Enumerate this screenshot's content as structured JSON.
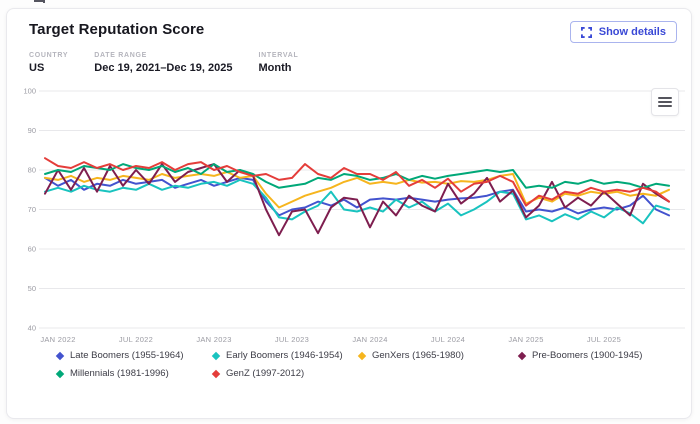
{
  "header": {
    "title": "Target Reputation Score",
    "show_details_label": "Show details"
  },
  "filters": {
    "country_label": "COUNTRY",
    "country_value": "US",
    "date_range_label": "DATE RANGE",
    "date_range_value": "Dec 19, 2021–Dec 19, 2025",
    "interval_label": "INTERVAL",
    "interval_value": "Month"
  },
  "icons": {
    "show_details": "expand-icon",
    "chart_menu": "hamburger-menu-icon"
  },
  "colors": {
    "accent": "#3a49d6",
    "grid": "#e8e8eb",
    "axis_label": "#9b9ba3"
  },
  "chart_data": {
    "type": "line",
    "title": "",
    "xlabel": "",
    "ylabel": "",
    "grid": true,
    "legend_position": "bottom",
    "ylim": [
      40,
      100
    ],
    "y_ticks": [
      100,
      90,
      80,
      70,
      60,
      50,
      40
    ],
    "x_tick_labels": [
      "JAN 2022",
      "JUL 2022",
      "JAN 2023",
      "JUL 2023",
      "JAN 2024",
      "JUL 2024",
      "JAN 2025",
      "JUL 2025"
    ],
    "x_tick_indexes": [
      1,
      7,
      13,
      19,
      25,
      31,
      37,
      43
    ],
    "x_months": [
      "Dec 2021",
      "Jan 2022",
      "Feb 2022",
      "Mar 2022",
      "Apr 2022",
      "May 2022",
      "Jun 2022",
      "Jul 2022",
      "Aug 2022",
      "Sep 2022",
      "Oct 2022",
      "Nov 2022",
      "Dec 2022",
      "Jan 2023",
      "Feb 2023",
      "Mar 2023",
      "Apr 2023",
      "May 2023",
      "Jun 2023",
      "Jul 2023",
      "Aug 2023",
      "Sep 2023",
      "Oct 2023",
      "Nov 2023",
      "Dec 2023",
      "Jan 2024",
      "Feb 2024",
      "Mar 2024",
      "Apr 2024",
      "May 2024",
      "Jun 2024",
      "Jul 2024",
      "Aug 2024",
      "Sep 2024",
      "Oct 2024",
      "Nov 2024",
      "Dec 2024",
      "Jan 2025",
      "Feb 2025",
      "Mar 2025",
      "Apr 2025",
      "May 2025",
      "Jun 2025",
      "Jul 2025",
      "Aug 2025",
      "Sep 2025",
      "Oct 2025",
      "Nov 2025",
      "Dec 2025"
    ],
    "series": [
      {
        "name": "Late Boomers (1955-1964)",
        "color": "#4353ce",
        "values": [
          78,
          76,
          77.5,
          75,
          76.5,
          76,
          77.5,
          76.5,
          77,
          77.5,
          75.5,
          76.5,
          77.5,
          76,
          77,
          78,
          77.5,
          72,
          68.5,
          70,
          70.5,
          72,
          71,
          72.5,
          70.5,
          72.5,
          72.8,
          72.5,
          73,
          72.5,
          72,
          72.5,
          72.8,
          73,
          73.5,
          74.5,
          75,
          69.5,
          70,
          69.5,
          70.5,
          69,
          70,
          70.5,
          70,
          71,
          73.5,
          70,
          68.5
        ]
      },
      {
        "name": "Early Boomers (1946-1954)",
        "color": "#19c3bf",
        "values": [
          74.5,
          75.5,
          74.5,
          76,
          75,
          74.5,
          75.5,
          75,
          76.5,
          75,
          76,
          75.5,
          76.5,
          77,
          76,
          77.5,
          76.5,
          73,
          68,
          67.5,
          69.5,
          71,
          74.5,
          70,
          69.5,
          70.5,
          69.5,
          72.5,
          70.5,
          72,
          69.5,
          71.5,
          68.5,
          70,
          72,
          74.5,
          74,
          67.5,
          68.5,
          67,
          68.8,
          67.5,
          69.5,
          68,
          70.5,
          69,
          66.5,
          71,
          70
        ]
      },
      {
        "name": "GenXers (1965-1980)",
        "color": "#f6b51e",
        "values": [
          78,
          77.5,
          78.5,
          77,
          78,
          77.5,
          78.5,
          78,
          77.5,
          79,
          78,
          78.5,
          79,
          78.5,
          79.5,
          78,
          78.5,
          74,
          70.5,
          72,
          73.5,
          74.5,
          75.5,
          77,
          78,
          76.5,
          77,
          76.5,
          77.5,
          76.8,
          77,
          76.5,
          77.2,
          77,
          77.5,
          78.5,
          79,
          71.5,
          73,
          72,
          74,
          73.5,
          74.5,
          74,
          74.5,
          73.5,
          74,
          73.5,
          75
        ]
      },
      {
        "name": "Pre-Boomers (1900-1945)",
        "color": "#7e1e4f",
        "values": [
          74,
          80,
          75,
          80.5,
          74.5,
          81,
          76,
          80,
          76.5,
          81.5,
          77,
          79.5,
          80.5,
          81.5,
          77,
          80,
          78.5,
          70,
          63.5,
          69.5,
          70,
          64,
          70.5,
          73,
          72.5,
          65.5,
          72,
          68.5,
          73.5,
          71,
          69.5,
          76.5,
          71.5,
          74,
          78,
          72,
          74.8,
          68,
          71,
          77,
          70.5,
          73,
          71,
          74.5,
          71.5,
          68.5,
          76.5,
          74,
          72
        ]
      },
      {
        "name": "Millennials (1981-1996)",
        "color": "#00a878",
        "values": [
          79,
          80,
          79.5,
          81,
          80.5,
          80,
          81.5,
          80.5,
          80,
          81,
          79.5,
          80.5,
          79,
          81.5,
          79.5,
          80,
          79,
          77,
          75.5,
          76,
          76.5,
          78,
          77.5,
          79,
          78.5,
          77.5,
          78,
          79,
          77.5,
          78.5,
          77.8,
          78.5,
          79,
          79.5,
          80,
          79.5,
          80,
          75.5,
          76,
          75.5,
          77,
          76.5,
          77.5,
          76.5,
          77,
          76.5,
          75.5,
          76.5,
          76
        ]
      },
      {
        "name": "GenZ (1997-2012)",
        "color": "#e43d3a",
        "values": [
          83,
          81,
          80.5,
          82,
          80.5,
          81.5,
          80,
          81,
          80.5,
          82,
          80,
          81.5,
          82,
          80,
          81,
          79.5,
          78.5,
          79,
          77.5,
          78,
          81.5,
          79,
          78,
          80.5,
          79,
          79,
          77.5,
          79.5,
          76,
          77.5,
          75.5,
          77.8,
          74.5,
          76.5,
          77,
          78.5,
          77,
          71,
          73.5,
          72.5,
          74.5,
          74,
          75.5,
          74.5,
          75,
          74.5,
          75.5,
          74.5,
          72
        ]
      }
    ]
  }
}
